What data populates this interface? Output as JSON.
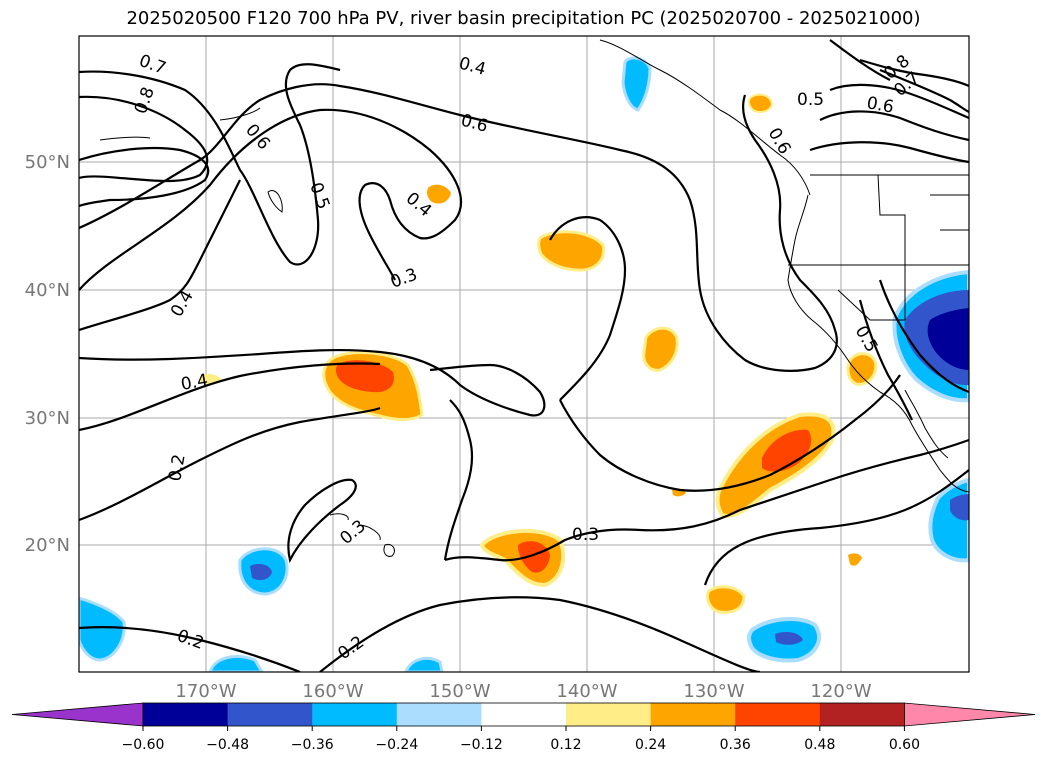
{
  "title": "2025020500 F120 700 hPa PV, river basin precipitation PC (2025020700 - 2025021000)",
  "lat_labels": [
    "50°N",
    "40°N",
    "30°N",
    "20°N"
  ],
  "lon_labels": [
    "170°W",
    "160°W",
    "150°W",
    "140°W",
    "130°W",
    "120°W"
  ],
  "contour_labels": [
    "0.7",
    "0.8",
    "0.6",
    "0.5",
    "0.4",
    "0.4",
    "0.6",
    "0.3",
    "0.6",
    "0.5",
    "0.8",
    "0.7",
    "0.6",
    "0.4",
    "0.4",
    "0.5",
    "0.2",
    "0.3",
    "0.3",
    "0.2",
    "0.2"
  ],
  "colorbar": {
    "ticks": [
      "−0.60",
      "−0.48",
      "−0.36",
      "−0.24",
      "−0.12",
      "0.12",
      "0.24",
      "0.36",
      "0.48",
      "0.60"
    ],
    "colors": [
      "#9933cc",
      "#000099",
      "#3355cc",
      "#00bbff",
      "#aaddff",
      "#ffffff",
      "#ffee88",
      "#ffa500",
      "#ff4400",
      "#b22222",
      "#ff88aa"
    ]
  },
  "shading_colors": {
    "pos_light": "#ffee88",
    "pos_mid": "#ffa500",
    "pos_strong": "#ff4400",
    "neg_light": "#aaddff",
    "neg_mid": "#00bbff",
    "neg_strong": "#3355cc",
    "neg_max": "#000099"
  }
}
